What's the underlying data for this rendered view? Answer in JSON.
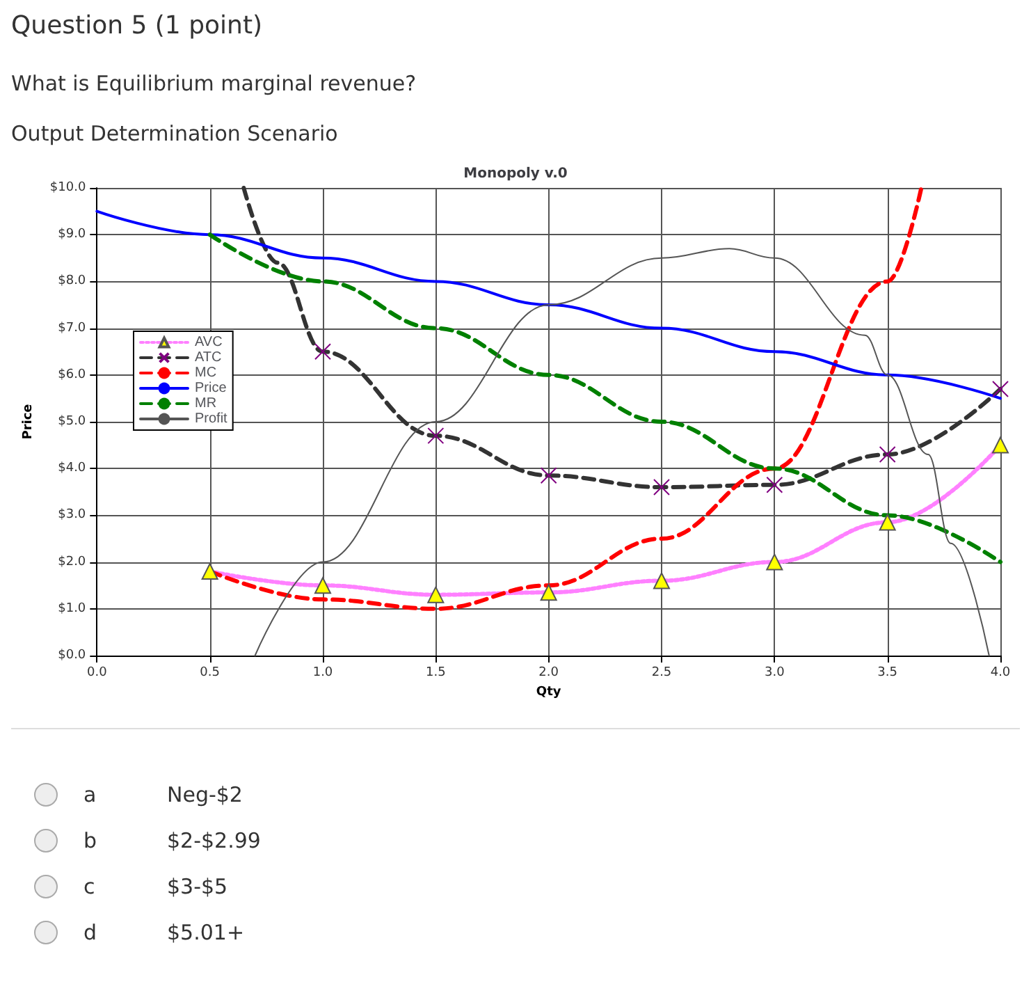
{
  "chart_data": {
    "type": "line",
    "title": "Monopoly v.0",
    "xlabel": "Qty",
    "ylabel": "Price",
    "annotations": [
      "Question 5 (1 point)",
      "What is Equilibrium marginal revenue?",
      "Output Determination Scenario",
      "a",
      "Neg-$2",
      "b",
      "$2-$2.99",
      "c",
      "$3-$5",
      "d",
      "$5.01+"
    ],
    "xlim": [
      0,
      4
    ],
    "xticks": [
      {
        "value": 0,
        "label": "0.0"
      },
      {
        "value": 0.5,
        "label": "0.5"
      },
      {
        "value": 1,
        "label": "1.0"
      },
      {
        "value": 1.5,
        "label": "1.5"
      },
      {
        "value": 2,
        "label": "2.0"
      },
      {
        "value": 2.5,
        "label": "2.5"
      },
      {
        "value": 3,
        "label": "3.0"
      },
      {
        "value": 3.5,
        "label": "3.5"
      },
      {
        "value": 4,
        "label": "4.0"
      }
    ],
    "ylim": [
      0,
      10
    ],
    "yticks": [
      {
        "value": 0,
        "label": "$0.0"
      },
      {
        "value": 1,
        "label": "$1.0"
      },
      {
        "value": 2,
        "label": "$2.0"
      },
      {
        "value": 3,
        "label": "$3.0"
      },
      {
        "value": 4,
        "label": "$4.0"
      },
      {
        "value": 5,
        "label": "$5.0"
      },
      {
        "value": 6,
        "label": "$6.0"
      },
      {
        "value": 7,
        "label": "$7.0"
      },
      {
        "value": 8,
        "label": "$8.0"
      },
      {
        "value": 9,
        "label": "$9.0"
      },
      {
        "value": 10,
        "label": "$10.0"
      }
    ],
    "grid": true,
    "legend": "left",
    "series": [
      {
        "name": "AVC",
        "color": "#ff80ff",
        "marker": "triangle",
        "line_style": "dotted",
        "x": [
          0.5,
          1,
          1.5,
          2,
          2.5,
          3,
          3.5,
          4
        ],
        "values": [
          1.8,
          1.5,
          1.3,
          1.35,
          1.6,
          2.0,
          2.85,
          4.5
        ]
      },
      {
        "name": "ATC",
        "color": "#333333",
        "marker": "cross",
        "line_style": "dashed",
        "x": [
          0.65,
          0.8,
          1,
          1.5,
          2,
          2.5,
          3,
          3.5,
          4
        ],
        "values": [
          10.0,
          8.4,
          6.5,
          4.7,
          3.85,
          3.6,
          3.65,
          4.3,
          5.7
        ]
      },
      {
        "name": "MC",
        "color": "#ff0000",
        "marker": "none",
        "line_style": "dashed",
        "x": [
          0.5,
          1,
          1.5,
          2,
          2.5,
          3,
          3.5,
          3.65
        ],
        "values": [
          1.8,
          1.2,
          1.0,
          1.5,
          2.5,
          4.0,
          8.0,
          10.0
        ]
      },
      {
        "name": "Price",
        "color": "#0000ff",
        "marker": "none",
        "line_style": "solid",
        "x": [
          0,
          0.5,
          1,
          1.5,
          2,
          2.5,
          3,
          3.5,
          4
        ],
        "values": [
          9.5,
          9.0,
          8.5,
          8.0,
          7.5,
          7.0,
          6.5,
          6.0,
          5.5
        ]
      },
      {
        "name": "MR",
        "color": "#008000",
        "marker": "none",
        "line_style": "dashed",
        "x": [
          0.5,
          1,
          1.5,
          2,
          2.5,
          3,
          3.5,
          4
        ],
        "values": [
          9.0,
          8.0,
          7.0,
          6.0,
          5.0,
          4.0,
          3.0,
          2.0
        ]
      },
      {
        "name": "Profit",
        "color": "#555555",
        "marker": "none",
        "line_style": "solid",
        "x": [
          0.7,
          1,
          1.5,
          2,
          2.5,
          2.8,
          3,
          3.4,
          3.5,
          3.68,
          3.78,
          3.95
        ],
        "values": [
          0.0,
          2.0,
          5.0,
          7.5,
          8.5,
          8.7,
          8.5,
          6.85,
          6.0,
          4.3,
          2.4,
          0.0
        ]
      }
    ]
  }
}
